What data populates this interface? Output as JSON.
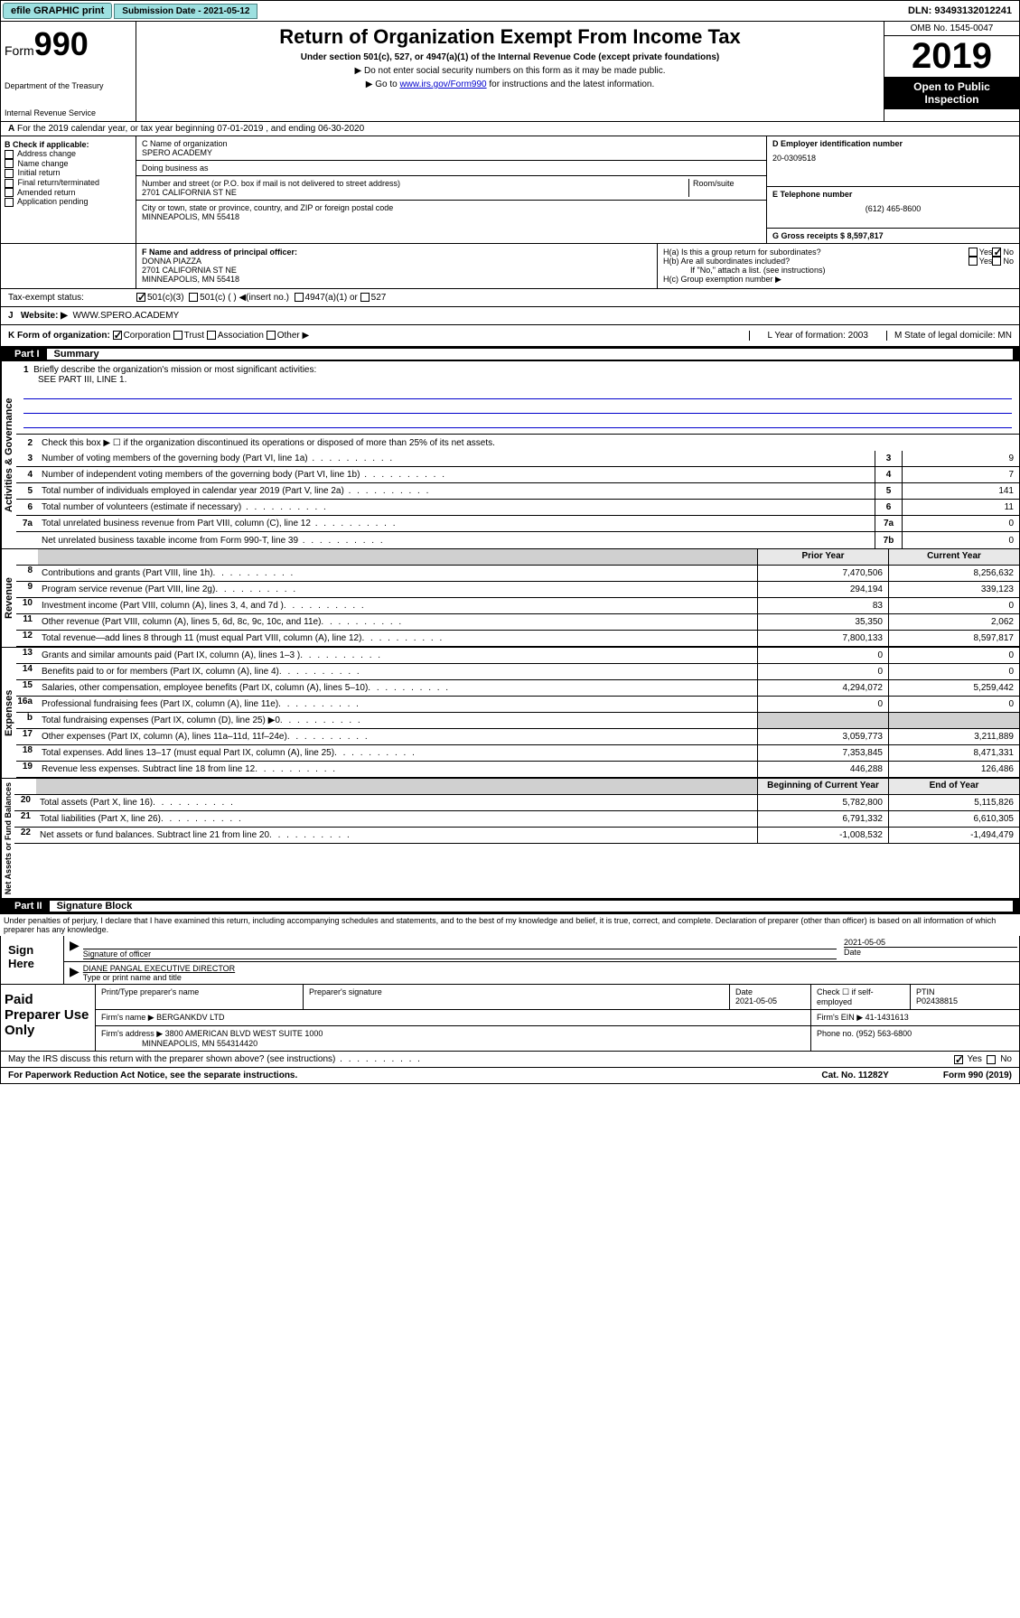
{
  "top": {
    "efile": "efile GRAPHIC print",
    "submission_label": "Submission Date - 2021-05-12",
    "dln": "DLN: 93493132012241"
  },
  "header": {
    "form": "Form",
    "form_number": "990",
    "dept": "Department of the Treasury",
    "irs": "Internal Revenue Service",
    "title": "Return of Organization Exempt From Income Tax",
    "subtitle": "Under section 501(c), 527, or 4947(a)(1) of the Internal Revenue Code (except private foundations)",
    "instr1": "▶ Do not enter social security numbers on this form as it may be made public.",
    "instr2_pre": "▶ Go to ",
    "instr2_link": "www.irs.gov/Form990",
    "instr2_post": " for instructions and the latest information.",
    "omb": "OMB No. 1545-0047",
    "year": "2019",
    "open_public": "Open to Public Inspection"
  },
  "row_a": "For the 2019 calendar year, or tax year beginning 07-01-2019    , and ending 06-30-2020",
  "box_b": {
    "label": "B Check if applicable:",
    "items": [
      "Address change",
      "Name change",
      "Initial return",
      "Final return/terminated",
      "Amended return",
      "Application pending"
    ]
  },
  "box_c": {
    "name_label": "C Name of organization",
    "name": "SPERO ACADEMY",
    "dba_label": "Doing business as",
    "addr_label": "Number and street (or P.O. box if mail is not delivered to street address)",
    "room_label": "Room/suite",
    "addr": "2701 CALIFORNIA ST NE",
    "city_label": "City or town, state or province, country, and ZIP or foreign postal code",
    "city": "MINNEAPOLIS, MN  55418"
  },
  "box_d": {
    "ein_label": "D Employer identification number",
    "ein": "20-0309518",
    "phone_label": "E Telephone number",
    "phone": "(612) 465-8600",
    "gross_label": "G Gross receipts $ 8,597,817"
  },
  "box_f": {
    "label": "F  Name and address of principal officer:",
    "name": "DONNA PIAZZA",
    "addr1": "2701 CALIFORNIA ST NE",
    "addr2": "MINNEAPOLIS, MN  55418"
  },
  "box_h": {
    "ha": "H(a)  Is this a group return for subordinates?",
    "hb": "H(b)  Are all subordinates included?",
    "hb_note": "If \"No,\" attach a list. (see instructions)",
    "hc": "H(c)  Group exemption number ▶"
  },
  "tax_status": {
    "label": "Tax-exempt status:",
    "opt1": "501(c)(3)",
    "opt2": "501(c) (  ) ◀(insert no.)",
    "opt3": "4947(a)(1) or",
    "opt4": "527"
  },
  "website": {
    "label": "Website: ▶",
    "value": "WWW.SPERO.ACADEMY"
  },
  "row_k": {
    "k": "K Form of organization:",
    "corp": "Corporation",
    "trust": "Trust",
    "assoc": "Association",
    "other": "Other ▶",
    "l": "L Year of formation: 2003",
    "m": "M State of legal domicile: MN"
  },
  "part1": {
    "label": "Part I",
    "title": "Summary"
  },
  "summary": {
    "q1": "Briefly describe the organization's mission or most significant activities:",
    "q1_ans": "SEE PART III, LINE 1.",
    "q2": "Check this box ▶ ☐  if the organization discontinued its operations or disposed of more than 25% of its net assets.",
    "lines": [
      {
        "n": "3",
        "t": "Number of voting members of the governing body (Part VI, line 1a)",
        "box": "3",
        "v": "9"
      },
      {
        "n": "4",
        "t": "Number of independent voting members of the governing body (Part VI, line 1b)",
        "box": "4",
        "v": "7"
      },
      {
        "n": "5",
        "t": "Total number of individuals employed in calendar year 2019 (Part V, line 2a)",
        "box": "5",
        "v": "141"
      },
      {
        "n": "6",
        "t": "Total number of volunteers (estimate if necessary)",
        "box": "6",
        "v": "11"
      },
      {
        "n": "7a",
        "t": "Total unrelated business revenue from Part VIII, column (C), line 12",
        "box": "7a",
        "v": "0"
      },
      {
        "n": "",
        "t": "Net unrelated business taxable income from Form 990-T, line 39",
        "box": "7b",
        "v": "0"
      }
    ],
    "col_hdr_prior": "Prior Year",
    "col_hdr_cur": "Current Year",
    "revenue": [
      {
        "n": "8",
        "t": "Contributions and grants (Part VIII, line 1h)",
        "p": "7,470,506",
        "c": "8,256,632"
      },
      {
        "n": "9",
        "t": "Program service revenue (Part VIII, line 2g)",
        "p": "294,194",
        "c": "339,123"
      },
      {
        "n": "10",
        "t": "Investment income (Part VIII, column (A), lines 3, 4, and 7d )",
        "p": "83",
        "c": "0"
      },
      {
        "n": "11",
        "t": "Other revenue (Part VIII, column (A), lines 5, 6d, 8c, 9c, 10c, and 11e)",
        "p": "35,350",
        "c": "2,062"
      },
      {
        "n": "12",
        "t": "Total revenue—add lines 8 through 11 (must equal Part VIII, column (A), line 12)",
        "p": "7,800,133",
        "c": "8,597,817"
      }
    ],
    "expenses": [
      {
        "n": "13",
        "t": "Grants and similar amounts paid (Part IX, column (A), lines 1–3 )",
        "p": "0",
        "c": "0"
      },
      {
        "n": "14",
        "t": "Benefits paid to or for members (Part IX, column (A), line 4)",
        "p": "0",
        "c": "0"
      },
      {
        "n": "15",
        "t": "Salaries, other compensation, employee benefits (Part IX, column (A), lines 5–10)",
        "p": "4,294,072",
        "c": "5,259,442"
      },
      {
        "n": "16a",
        "t": "Professional fundraising fees (Part IX, column (A), line 11e)",
        "p": "0",
        "c": "0"
      },
      {
        "n": "b",
        "t": "Total fundraising expenses (Part IX, column (D), line 25) ▶0",
        "p": "",
        "c": "",
        "shaded": true
      },
      {
        "n": "17",
        "t": "Other expenses (Part IX, column (A), lines 11a–11d, 11f–24e)",
        "p": "3,059,773",
        "c": "3,211,889"
      },
      {
        "n": "18",
        "t": "Total expenses. Add lines 13–17 (must equal Part IX, column (A), line 25)",
        "p": "7,353,845",
        "c": "8,471,331"
      },
      {
        "n": "19",
        "t": "Revenue less expenses. Subtract line 18 from line 12",
        "p": "446,288",
        "c": "126,486"
      }
    ],
    "col_hdr_beg": "Beginning of Current Year",
    "col_hdr_end": "End of Year",
    "netassets": [
      {
        "n": "20",
        "t": "Total assets (Part X, line 16)",
        "p": "5,782,800",
        "c": "5,115,826"
      },
      {
        "n": "21",
        "t": "Total liabilities (Part X, line 26)",
        "p": "6,791,332",
        "c": "6,610,305"
      },
      {
        "n": "22",
        "t": "Net assets or fund balances. Subtract line 21 from line 20",
        "p": "-1,008,532",
        "c": "-1,494,479"
      }
    ],
    "labels": {
      "gov": "Activities & Governance",
      "rev": "Revenue",
      "exp": "Expenses",
      "net": "Net Assets or Fund Balances"
    }
  },
  "part2": {
    "label": "Part II",
    "title": "Signature Block"
  },
  "perjury": "Under penalties of perjury, I declare that I have examined this return, including accompanying schedules and statements, and to the best of my knowledge and belief, it is true, correct, and complete. Declaration of preparer (other than officer) is based on all information of which preparer has any knowledge.",
  "sign": {
    "label": "Sign Here",
    "sig_officer": "Signature of officer",
    "date": "2021-05-05",
    "date_label": "Date",
    "name": "DIANE PANGAL  EXECUTIVE DIRECTOR",
    "name_label": "Type or print name and title"
  },
  "paid": {
    "label": "Paid Preparer Use Only",
    "print_label": "Print/Type preparer's name",
    "sig_label": "Preparer's signature",
    "date_label": "Date",
    "date": "2021-05-05",
    "check_label": "Check ☐ if self-employed",
    "ptin_label": "PTIN",
    "ptin": "P02438815",
    "firm_name_label": "Firm's name     ▶",
    "firm_name": "BERGANKDV LTD",
    "firm_ein_label": "Firm's EIN ▶",
    "firm_ein": "41-1431613",
    "firm_addr_label": "Firm's address ▶",
    "firm_addr": "3800 AMERICAN BLVD WEST SUITE 1000",
    "firm_city": "MINNEAPOLIS, MN  554314420",
    "phone_label": "Phone no.",
    "phone": "(952) 563-6800"
  },
  "footer": {
    "discuss": "May the IRS discuss this return with the preparer shown above? (see instructions)",
    "yes": "Yes",
    "no": "No",
    "paperwork": "For Paperwork Reduction Act Notice, see the separate instructions.",
    "cat": "Cat. No. 11282Y",
    "form": "Form 990 (2019)"
  }
}
